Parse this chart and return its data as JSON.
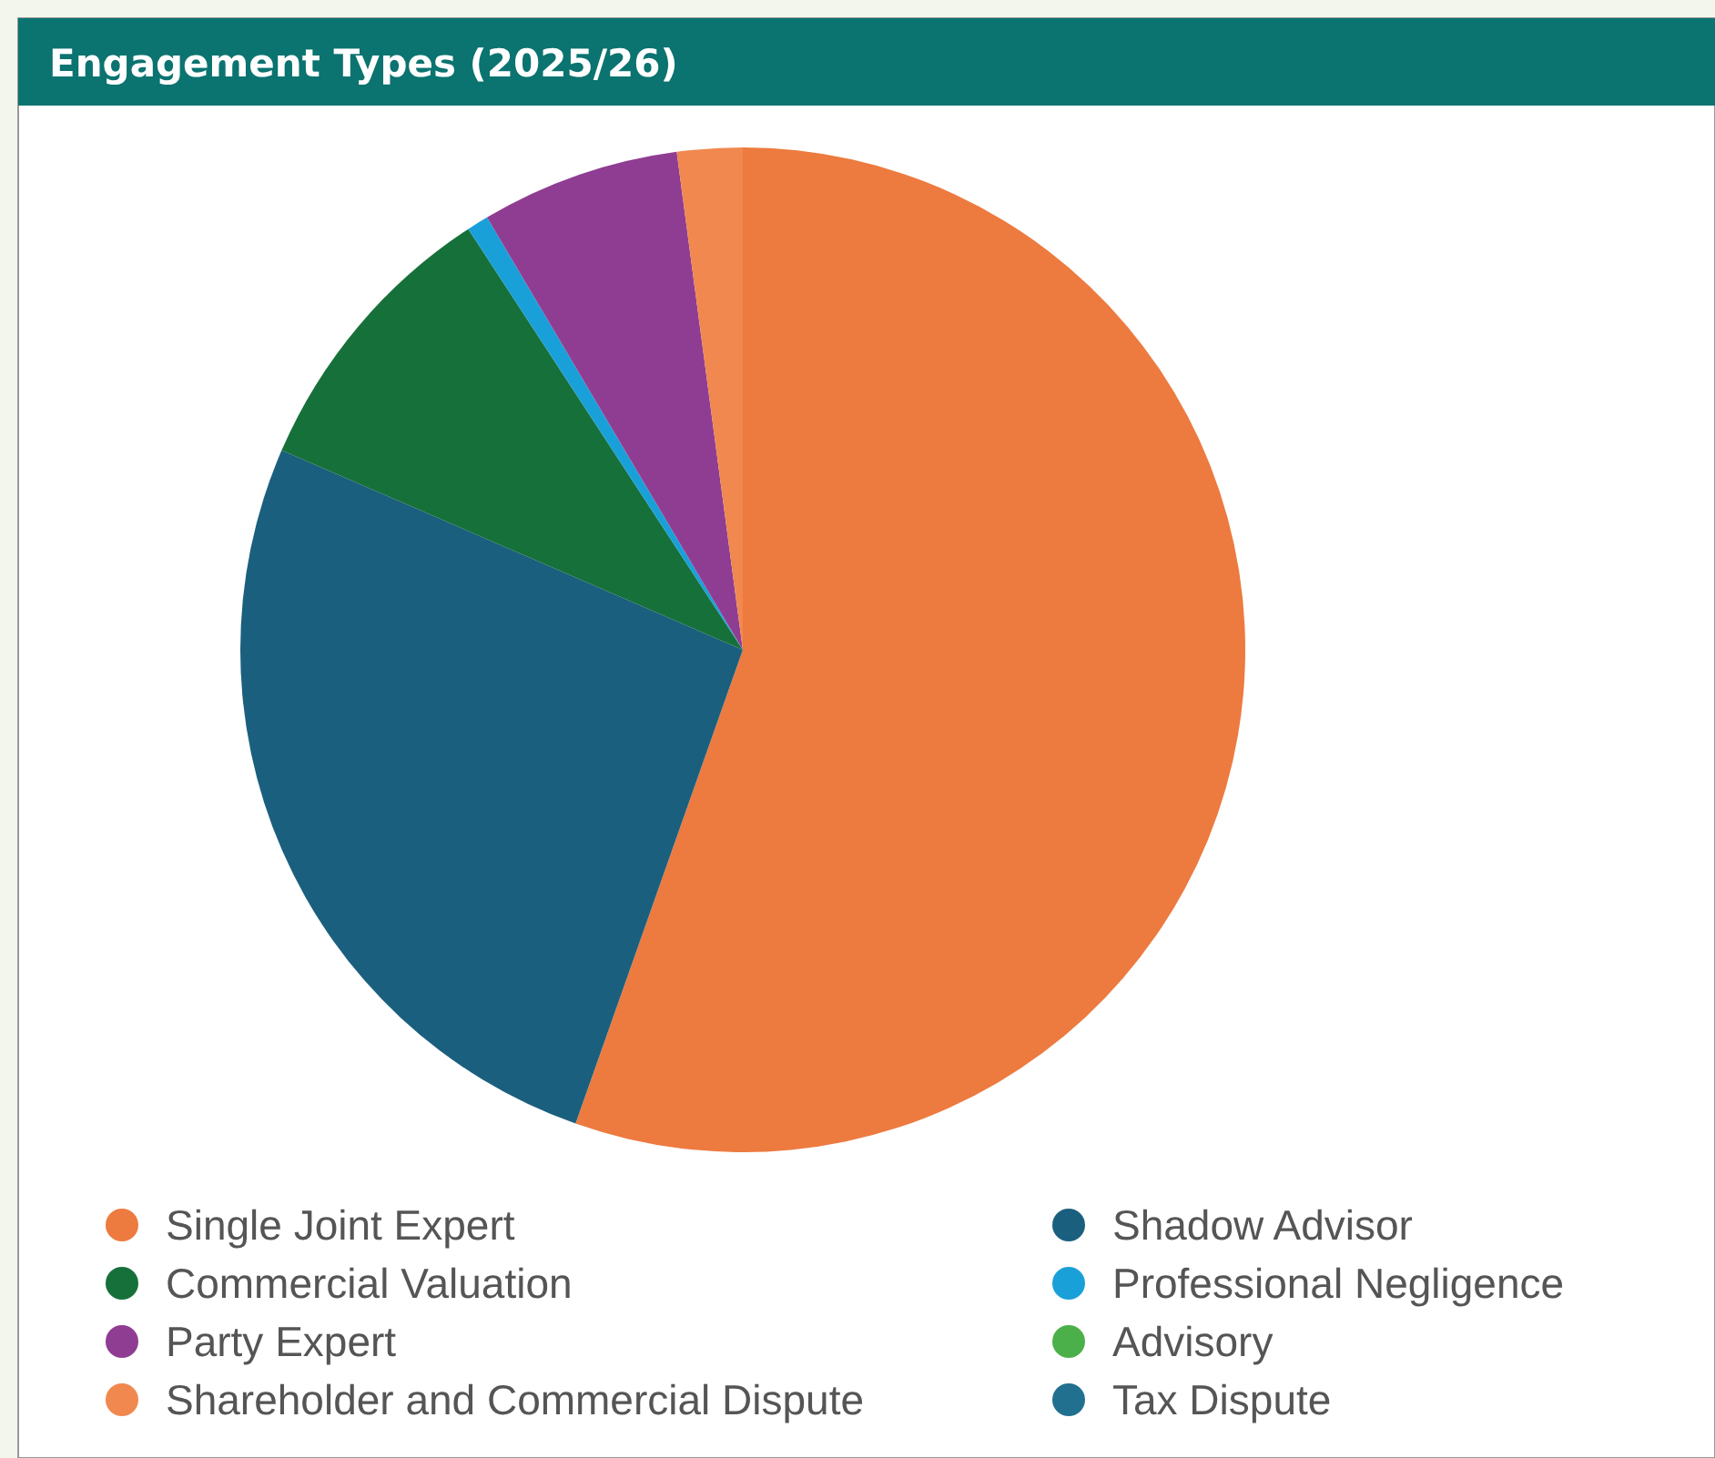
{
  "chart_data": {
    "type": "pie",
    "title": "Engagement Types (2025/26)",
    "categories": [
      "Single Joint Expert",
      "Shadow Advisor",
      "Commercial Valuation",
      "Professional Negligence",
      "Party Expert",
      "Advisory",
      "Shareholder and Commercial Dispute",
      "Tax Dispute"
    ],
    "values": [
      55.4,
      26.1,
      9.3,
      0.7,
      6.4,
      0,
      2.1,
      0
    ],
    "colors": [
      "#ed7a3f",
      "#1b5f7e",
      "#16703a",
      "#1aa0d8",
      "#8f3d92",
      "#4cb04a",
      "#f0884f",
      "#22708f"
    ],
    "legend": "bottom"
  }
}
